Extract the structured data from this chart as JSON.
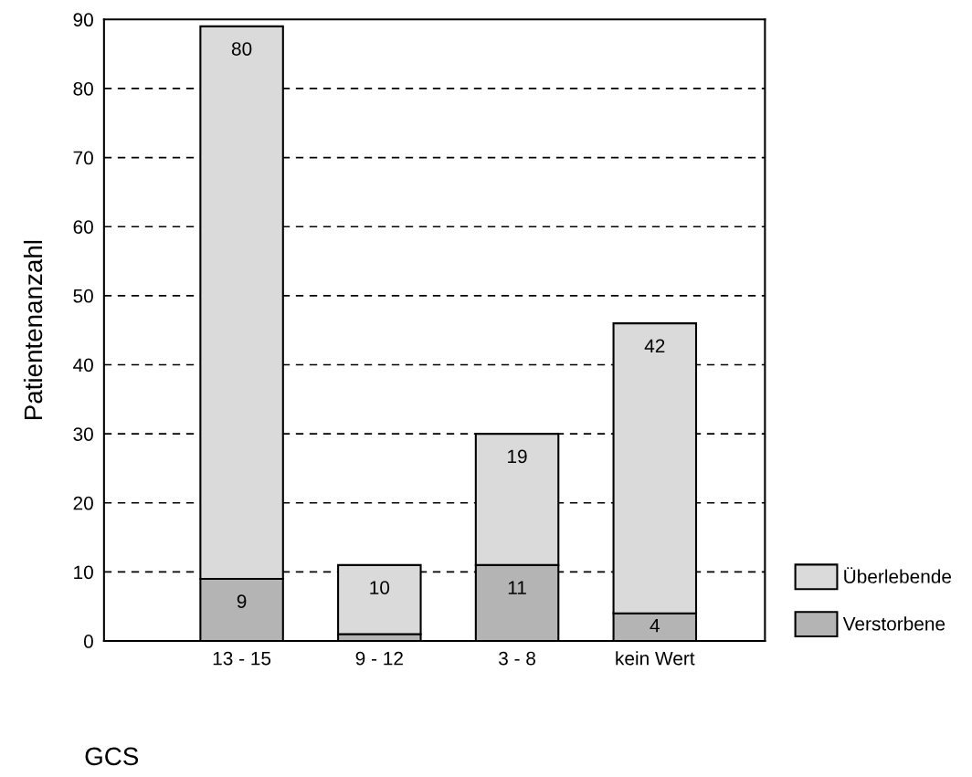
{
  "chart_data": {
    "type": "bar",
    "stacked": true,
    "xlabel": "GCS",
    "ylabel": "Patientenanzahl",
    "categories": [
      "13 - 15",
      "9 - 12",
      "3 - 8",
      "kein Wert"
    ],
    "series": [
      {
        "name": "Verstorbene",
        "color": "#b4b4b4",
        "values": [
          9,
          1,
          11,
          4
        ],
        "value_labels": [
          "9",
          null,
          "11",
          "4"
        ]
      },
      {
        "name": "Überlebende",
        "color": "#dadada",
        "values": [
          80,
          10,
          19,
          42
        ],
        "value_labels": [
          "80",
          "10",
          "19",
          "42"
        ]
      }
    ],
    "ylim": [
      0,
      90
    ],
    "yticks": [
      0,
      10,
      20,
      30,
      40,
      50,
      60,
      70,
      80,
      90
    ],
    "grid": "y",
    "legend": "bottom right"
  }
}
